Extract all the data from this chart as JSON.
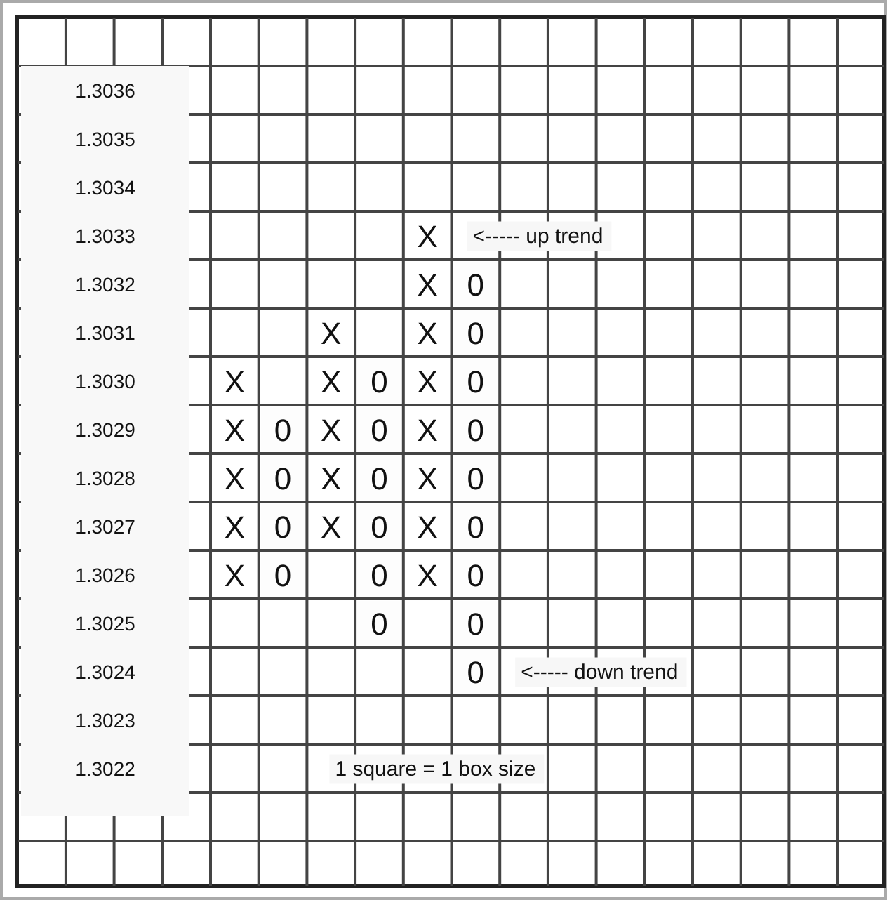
{
  "chart_data": {
    "type": "heatmap",
    "categories": [
      null,
      null,
      null,
      null,
      null,
      null,
      null,
      null,
      null,
      null,
      null,
      null,
      null,
      null,
      null,
      null,
      null,
      null
    ],
    "y_categories": [
      "1.3036",
      "1.3035",
      "1.3034",
      "1.3033",
      "1.3032",
      "1.3031",
      "1.3030",
      "1.3029",
      "1.3028",
      "1.3027",
      "1.3026",
      "1.3025",
      "1.3024",
      "1.3023",
      "1.3022"
    ],
    "cells": [
      [
        null,
        null,
        null,
        null,
        null,
        null,
        null,
        null,
        null,
        null,
        null,
        null,
        null,
        null,
        null,
        null,
        null,
        null
      ],
      [
        null,
        null,
        null,
        null,
        null,
        null,
        null,
        null,
        null,
        null,
        null,
        null,
        null,
        null,
        null,
        null,
        null,
        null
      ],
      [
        null,
        null,
        null,
        null,
        null,
        null,
        null,
        null,
        null,
        null,
        null,
        null,
        null,
        null,
        null,
        null,
        null,
        null
      ],
      [
        null,
        null,
        null,
        null,
        null,
        null,
        null,
        null,
        null,
        null,
        null,
        null,
        null,
        null,
        null,
        null,
        null,
        null
      ],
      [
        null,
        null,
        null,
        null,
        null,
        null,
        null,
        null,
        null,
        0,
        null,
        null,
        null,
        null,
        null,
        null,
        null,
        null
      ],
      [
        null,
        null,
        null,
        null,
        null,
        null,
        null,
        null,
        null,
        0,
        null,
        null,
        null,
        null,
        null,
        null,
        null,
        null
      ],
      [
        null,
        null,
        null,
        null,
        null,
        null,
        null,
        0,
        null,
        0,
        null,
        null,
        null,
        null,
        null,
        null,
        null,
        null
      ],
      [
        null,
        null,
        null,
        null,
        null,
        0,
        null,
        0,
        null,
        0,
        null,
        null,
        null,
        null,
        null,
        null,
        null,
        null
      ],
      [
        null,
        null,
        null,
        null,
        null,
        0,
        null,
        0,
        null,
        0,
        null,
        null,
        null,
        null,
        null,
        null,
        null,
        null
      ],
      [
        null,
        null,
        null,
        null,
        null,
        0,
        null,
        0,
        null,
        0,
        null,
        null,
        null,
        null,
        null,
        null,
        null,
        null
      ],
      [
        null,
        null,
        null,
        null,
        null,
        0,
        null,
        0,
        null,
        0,
        null,
        null,
        null,
        null,
        null,
        null,
        null,
        null
      ],
      [
        null,
        null,
        null,
        null,
        null,
        null,
        null,
        0,
        null,
        0,
        null,
        null,
        null,
        null,
        null,
        null,
        null,
        null
      ],
      [
        null,
        null,
        null,
        null,
        null,
        null,
        null,
        null,
        null,
        0,
        null,
        null,
        null,
        null,
        null,
        null,
        null,
        null
      ],
      [
        null,
        null,
        null,
        null,
        null,
        null,
        null,
        null,
        null,
        null,
        null,
        null,
        null,
        null,
        null,
        null,
        null,
        null
      ],
      [
        null,
        null,
        null,
        null,
        null,
        null,
        null,
        null,
        null,
        null,
        null,
        null,
        null,
        null,
        null,
        null,
        null,
        null
      ]
    ],
    "cell_labels": [
      [
        null,
        null,
        null,
        null,
        null,
        null,
        null,
        null,
        null,
        null,
        null,
        null,
        null,
        null,
        null,
        null,
        null,
        null
      ],
      [
        null,
        null,
        null,
        null,
        null,
        null,
        null,
        null,
        null,
        null,
        null,
        null,
        null,
        null,
        null,
        null,
        null,
        null
      ],
      [
        null,
        null,
        null,
        null,
        null,
        null,
        null,
        null,
        null,
        null,
        null,
        null,
        null,
        null,
        null,
        null,
        null,
        null
      ],
      [
        null,
        null,
        null,
        null,
        null,
        null,
        null,
        null,
        "X",
        null,
        null,
        null,
        null,
        null,
        null,
        null,
        null,
        null
      ],
      [
        null,
        null,
        null,
        null,
        null,
        null,
        null,
        null,
        "X",
        "0",
        null,
        null,
        null,
        null,
        null,
        null,
        null,
        null
      ],
      [
        null,
        null,
        null,
        null,
        null,
        null,
        "X",
        null,
        "X",
        "0",
        null,
        null,
        null,
        null,
        null,
        null,
        null,
        null
      ],
      [
        null,
        null,
        null,
        null,
        "X",
        null,
        "X",
        "0",
        "X",
        "0",
        null,
        null,
        null,
        null,
        null,
        null,
        null,
        null
      ],
      [
        null,
        null,
        null,
        null,
        "X",
        "0",
        "X",
        "0",
        "X",
        "0",
        null,
        null,
        null,
        null,
        null,
        null,
        null,
        null
      ],
      [
        null,
        null,
        null,
        null,
        "X",
        "0",
        "X",
        "0",
        "X",
        "0",
        null,
        null,
        null,
        null,
        null,
        null,
        null,
        null
      ],
      [
        null,
        null,
        null,
        null,
        "X",
        "0",
        "X",
        "0",
        "X",
        "0",
        null,
        null,
        null,
        null,
        null,
        null,
        null,
        null
      ],
      [
        null,
        null,
        null,
        null,
        "X",
        "0",
        null,
        "0",
        "X",
        "0",
        null,
        null,
        null,
        null,
        null,
        null,
        null,
        null
      ],
      [
        null,
        null,
        null,
        null,
        null,
        null,
        null,
        "0",
        null,
        "0",
        null,
        null,
        null,
        null,
        null,
        null,
        null,
        null
      ],
      [
        null,
        null,
        null,
        null,
        null,
        null,
        null,
        null,
        null,
        "0",
        null,
        null,
        null,
        null,
        null,
        null,
        null,
        null
      ],
      [
        null,
        null,
        null,
        null,
        null,
        null,
        null,
        null,
        null,
        null,
        null,
        null,
        null,
        null,
        null,
        null,
        null,
        null
      ],
      [
        null,
        null,
        null,
        null,
        null,
        null,
        null,
        null,
        null,
        null,
        null,
        null,
        null,
        null,
        null,
        null,
        null,
        null
      ]
    ],
    "annotations": [
      "<----- up trend",
      "<----- down trend",
      "1 square = 1 box size"
    ],
    "grid": true
  }
}
